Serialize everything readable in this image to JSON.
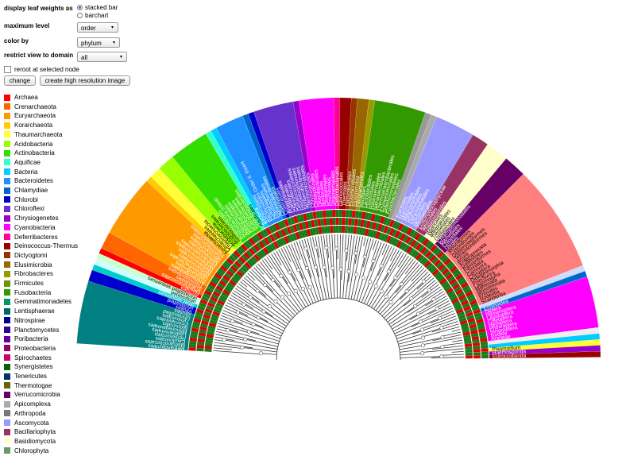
{
  "controls": {
    "display_label": "display leaf weights as",
    "display_options": [
      "stacked bar",
      "barchart"
    ],
    "max_level_label": "maximum level",
    "max_level_value": "order",
    "color_by_label": "color by",
    "color_by_value": "phylum",
    "domain_label": "restrict view to domain",
    "domain_value": "all",
    "reroot_label": "reroot at selected node",
    "change_label": "change",
    "hires_label": "create high resolution image"
  },
  "legend": [
    {
      "label": "Archaea",
      "color": "#ff0000"
    },
    {
      "label": "Crenarchaeota",
      "color": "#ff6600"
    },
    {
      "label": "Euryarchaeota",
      "color": "#ff9900"
    },
    {
      "label": "Korarchaeota",
      "color": "#ffcc00"
    },
    {
      "label": "Thaumarchaeota",
      "color": "#ffff33"
    },
    {
      "label": "Acidobacteria",
      "color": "#99ff00"
    },
    {
      "label": "Actinobacteria",
      "color": "#33dd00"
    },
    {
      "label": "Aquificae",
      "color": "#33ffcc"
    },
    {
      "label": "Bacteria",
      "color": "#00ccff"
    },
    {
      "label": "Bacteroidetes",
      "color": "#1e90ff"
    },
    {
      "label": "Chlamydiae",
      "color": "#0066cc"
    },
    {
      "label": "Chlorobi",
      "color": "#0000cc"
    },
    {
      "label": "Chloroflexi",
      "color": "#6633cc"
    },
    {
      "label": "Chrysiogenetes",
      "color": "#9900cc"
    },
    {
      "label": "Cyanobacteria",
      "color": "#ff00ff"
    },
    {
      "label": "Deferribacteres",
      "color": "#ff0099"
    },
    {
      "label": "Deinococcus-Thermus",
      "color": "#990000"
    },
    {
      "label": "Dictyoglomi",
      "color": "#993300"
    },
    {
      "label": "Elusimicrobia",
      "color": "#996600"
    },
    {
      "label": "Fibrobacteres",
      "color": "#999900"
    },
    {
      "label": "Firmicutes",
      "color": "#669900"
    },
    {
      "label": "Fusobacteria",
      "color": "#339900"
    },
    {
      "label": "Gemmatimonadetes",
      "color": "#009966"
    },
    {
      "label": "Lentisphaerae",
      "color": "#006666"
    },
    {
      "label": "Nitrospirae",
      "color": "#000099"
    },
    {
      "label": "Planctomycetes",
      "color": "#330099"
    },
    {
      "label": "Poribacteria",
      "color": "#660099"
    },
    {
      "label": "Proteobacteria",
      "color": "#990066"
    },
    {
      "label": "Spirochaetes",
      "color": "#cc0066"
    },
    {
      "label": "Synergistetes",
      "color": "#006600"
    },
    {
      "label": "Tenericutes",
      "color": "#003366"
    },
    {
      "label": "Thermotogae",
      "color": "#666600"
    },
    {
      "label": "Verrucomicrobia",
      "color": "#660066"
    },
    {
      "label": "Apicomplexa",
      "color": "#aaaaaa"
    },
    {
      "label": "Arthropoda",
      "color": "#777777"
    },
    {
      "label": "Ascomycota",
      "color": "#9999ff"
    },
    {
      "label": "Bacillariophyta",
      "color": "#993366"
    },
    {
      "label": "Basidiomycota",
      "color": "#ffffcc"
    },
    {
      "label": "Chlorophyta",
      "color": "#669966"
    }
  ],
  "tree": {
    "sectors": [
      {
        "color": "#008080",
        "labels": [
          "Methanopyrales",
          "Methanococcales",
          "Caudovirales",
          "Herpesvirales",
          "Ligamenvirales",
          "Mononegavirales",
          "Nidovirales",
          "Picornavirales",
          "Tymovirales",
          "Unclassified",
          "Viruses"
        ]
      },
      {
        "color": "#0000cc",
        "labels": [
          "Viruses",
          "unclassified"
        ]
      },
      {
        "color": "#00cccc",
        "labels": [
          "other sequences"
        ]
      },
      {
        "color": "#ccffff",
        "labels": [
          "unassigned"
        ]
      },
      {
        "color": "#ccffcc",
        "labels": [
          "unclassified sequences"
        ]
      },
      {
        "color": "#ff0000",
        "labels": [
          "Archaea"
        ]
      },
      {
        "color": "#ff6600",
        "labels": [
          "Desulfurococcales",
          "Sulfolobales",
          "Thermoproteales"
        ]
      },
      {
        "color": "#ff9900",
        "labels": [
          "Archaeoglobales",
          "Halobacteriales",
          "Methanobacteriales",
          "Methanocellales",
          "Methanococcales",
          "Methanomicrobiales",
          "Methanosarcinales",
          "Methanopyrales",
          "Nitrosopumilales",
          "Thermococcales",
          "Thermoplasmatales"
        ]
      },
      {
        "color": "#ffcc00",
        "labels": [
          "Korarchaeota"
        ]
      },
      {
        "color": "#ffff33",
        "labels": [
          "Cenarchaeales",
          "Thaumarchaeota"
        ]
      },
      {
        "color": "#99ff00",
        "labels": [
          "Acidobacteria",
          "Acidobacteriales",
          "Solibacterales"
        ]
      },
      {
        "color": "#33dd00",
        "labels": [
          "Acidimicrobiales",
          "Actinobacteria (class)",
          "Actinomycetales",
          "Bifidobacteriales",
          "Coriobacteriales",
          "Rubrobacterales",
          "Solirubrobacterales"
        ]
      },
      {
        "color": "#33ffcc",
        "labels": [
          "Aquificales"
        ]
      },
      {
        "color": "#00ccff",
        "labels": [
          "Bacteria"
        ]
      },
      {
        "color": "#1e90ff",
        "labels": [
          "Bacteroidales",
          "Bacteroidetes Order II. Incert",
          "Cytophagales",
          "Flavobacteriales",
          "Sphingobacteriales"
        ]
      },
      {
        "color": "#0066cc",
        "labels": [
          "Chlamydiales"
        ]
      },
      {
        "color": "#0000cc",
        "labels": [
          "Chlorobiales"
        ]
      },
      {
        "color": "#6633cc",
        "labels": [
          "Anaerolineales",
          "Caldilineales",
          "Chloroflexales",
          "Dehalococcoidetes",
          "Herpetosiphonales",
          "Sphaerobacterales",
          "Thermomicrobiales"
        ]
      },
      {
        "color": "#9900cc",
        "labels": [
          "Chrysiogenales"
        ]
      },
      {
        "color": "#ff00ff",
        "labels": [
          "Chroococcales",
          "Gloeobacterales",
          "Nostocales",
          "Oscillatoriales",
          "Prochlorales",
          "Stigonematales"
        ]
      },
      {
        "color": "#ff0099",
        "labels": [
          "Deferribacterales"
        ]
      },
      {
        "color": "#990000",
        "labels": [
          "Deinococcales",
          "Thermales"
        ]
      },
      {
        "color": "#993300",
        "labels": [
          "Dictyoglomales"
        ]
      },
      {
        "color": "#996600",
        "labels": [
          "Elusimicrobiales",
          "Elusimicrobia"
        ]
      },
      {
        "color": "#999900",
        "labels": [
          "Fibrobacterales"
        ]
      },
      {
        "color": "#339900",
        "labels": [
          "Bacillales",
          "Lactobacillales",
          "Clostridiales",
          "Halanaerobiales",
          "Natranaerobiales",
          "Thermoanaerobacterales",
          "Erysipelotrichales",
          "Selenomonadales",
          "Fusobacteriales"
        ]
      },
      {
        "color": "#999999",
        "labels": []
      },
      {
        "color": "#aaaaaa",
        "labels": []
      },
      {
        "color": "#9999ff",
        "labels": [
          "Eurotiales",
          "Hypocreales",
          "Magnaporthales",
          "Glomerellales",
          "Ophiostomatales",
          "Sordariales",
          "Microascales"
        ]
      },
      {
        "color": "#993366",
        "labels": [
          "Coscinodiscophyceae",
          "Naviculales",
          "Thalassiosirales"
        ]
      },
      {
        "color": "#ffffcc",
        "labels": [
          "Agaricales",
          "Malasseziales",
          "Tremellales",
          "Ustilaginales"
        ]
      },
      {
        "color": "#660066",
        "labels": [
          "Chlamydomonadales",
          "Mamiellales",
          "Chlorellales",
          "Ulvales"
        ]
      },
      {
        "color": "#ff7f7f",
        "labels": [
          "Beloniformes",
          "Cypriniformes",
          "Gasterosteiformes",
          "Tetraodontiformes",
          "Anura",
          "Enteropneusta",
          "Galliformes",
          "Passeriformes",
          "Chordata",
          "Carnivora",
          "Chiroptera",
          "Didelphimorphia",
          "Insectivora",
          "Lagomorpha",
          "Mammalia",
          "Monotremata",
          "Primates",
          "Rodentia",
          "Scandentia"
        ]
      },
      {
        "color": "#ccddff",
        "labels": []
      },
      {
        "color": "#0066cc",
        "labels": [
          "Echinoidea"
        ]
      },
      {
        "color": "#ff00ff",
        "labels": [
          "Diptera",
          "Hymenoptera",
          "Lepidoptera",
          "Coleoptera",
          "Hemiptera",
          "Phthiraptera",
          "Strepsiptera",
          "Ixodida",
          "Araneae"
        ]
      },
      {
        "color": "#eeeeee",
        "labels": []
      },
      {
        "color": "#00ccff",
        "labels": []
      },
      {
        "color": "#ffff33",
        "labels": [
          "Plasmodium"
        ]
      },
      {
        "color": "#9900cc",
        "labels": [
          "Haemosporida"
        ]
      },
      {
        "color": "#990000",
        "labels": [
          "Eucoccidiorida"
        ]
      }
    ]
  }
}
